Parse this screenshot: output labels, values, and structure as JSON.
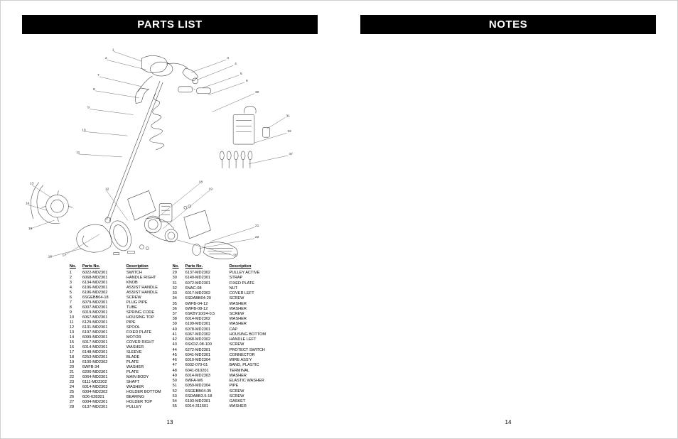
{
  "left": {
    "header": "PARTS LIST",
    "page_number": "13",
    "table": {
      "columns": [
        "No.",
        "Parts No.",
        "Description"
      ],
      "rows_a": [
        [
          "1",
          "6022-MD2301",
          "SWITCH"
        ],
        [
          "2",
          "6068-MD2301",
          "HANDLE RIGHT"
        ],
        [
          "3",
          "6134-MD2301",
          "KNOB"
        ],
        [
          "4",
          "6196-MD2301",
          "ASSIST HANDLE"
        ],
        [
          "5",
          "6196-MD2302",
          "ASSIST HANDLE"
        ],
        [
          "6",
          "6SGEBB04-18",
          "SCREW"
        ],
        [
          "7",
          "6079-MD2301",
          "PLUG PIPE"
        ],
        [
          "8",
          "6007-MD2301",
          "TUBE"
        ],
        [
          "9",
          "6019-MD2301",
          "SPRING CODE"
        ],
        [
          "10",
          "6067-MD2301",
          "HOUSING TOP"
        ],
        [
          "11",
          "6129-MD2301",
          "PIPE"
        ],
        [
          "12",
          "6131-MD2301",
          "SPOOL"
        ],
        [
          "13",
          "6197-MD2301",
          "FIXED PLATE"
        ],
        [
          "14",
          "6099-MD2301",
          "MOTOR"
        ],
        [
          "15",
          "6017-MD2301",
          "COVER RIGHT"
        ],
        [
          "16",
          "6014-MD2301",
          "WASHER"
        ],
        [
          "17",
          "6148-MD2301",
          "SLEEVE"
        ],
        [
          "18",
          "6253-MD2301",
          "BLADE"
        ],
        [
          "19",
          "6100-MD2302",
          "PLATE"
        ],
        [
          "20",
          "6WFB-34",
          "WASHER"
        ],
        [
          "21",
          "6200-MD2301",
          "PLATE"
        ],
        [
          "22",
          "6064-MD2301",
          "MAIN BODY"
        ],
        [
          "23",
          "6111-MD2302",
          "SHAFT"
        ],
        [
          "24",
          "6014-MD2303",
          "WASHER"
        ],
        [
          "25",
          "6004-MD2302",
          "HOLDER BOTTOM"
        ],
        [
          "26",
          "6D6-628301",
          "BEARING"
        ],
        [
          "27",
          "6004-MD2301",
          "HOLDER TOP"
        ],
        [
          "28",
          "6137-MD2301",
          "PULLEY"
        ]
      ],
      "rows_b": [
        [
          "29",
          "6137-MD2302",
          "PULLEY ACTIVE"
        ],
        [
          "30",
          "6149-MD2301",
          "STRAP"
        ],
        [
          "31",
          "6072-MD2301",
          "FIXED PLATE"
        ],
        [
          "32",
          "6NAC-08",
          "NUT"
        ],
        [
          "33",
          "6017-MD2302",
          "COVER LEFT"
        ],
        [
          "34",
          "6SDABB04-20",
          "SCREW"
        ],
        [
          "35",
          "6WFB-04-12",
          "WASHER"
        ],
        [
          "36",
          "6WFB-08-12",
          "WASHER"
        ],
        [
          "37",
          "6SKBY10/24-0.5",
          "SCREW"
        ],
        [
          "38",
          "6014-MD2302",
          "WASHER"
        ],
        [
          "39",
          "6199-MD2301",
          "WASHER"
        ],
        [
          "40",
          "6078-MD2301",
          "CAP"
        ],
        [
          "41",
          "6067-MD2302",
          "HOUSING BOTTOM"
        ],
        [
          "42",
          "6068-MD2302",
          "HANDLE LEFT"
        ],
        [
          "43",
          "6SXDZ-08-100",
          "SCREW"
        ],
        [
          "44",
          "6272-MD2301",
          "PROTECT SWITCH"
        ],
        [
          "45",
          "6041-MD2301",
          "CONNECTOR"
        ],
        [
          "46",
          "6010-MD2304",
          "WIRE ASS'Y"
        ],
        [
          "47",
          "6032-070-01",
          "BAND, PLASTIC"
        ],
        [
          "48",
          "6041-810201",
          "TERMINAL"
        ],
        [
          "49",
          "6014-MD2303",
          "WASHER"
        ],
        [
          "50",
          "6WFA-M6",
          "ELASTIC WASHER"
        ],
        [
          "51",
          "6059-MD2304",
          "PIPE"
        ],
        [
          "52",
          "6SGEBB04-35",
          "SCREW"
        ],
        [
          "53",
          "6SDABB3.5-18",
          "SCREW"
        ],
        [
          "54",
          "6193-MD2301",
          "GASKET"
        ],
        [
          "55",
          "6014-311501",
          "WASHER"
        ]
      ]
    }
  },
  "right": {
    "header": "NOTES",
    "page_number": "14"
  },
  "diagram": {
    "stroke": "#4a4a4a",
    "stroke_width": 0.6,
    "callout_font_size": 5
  }
}
